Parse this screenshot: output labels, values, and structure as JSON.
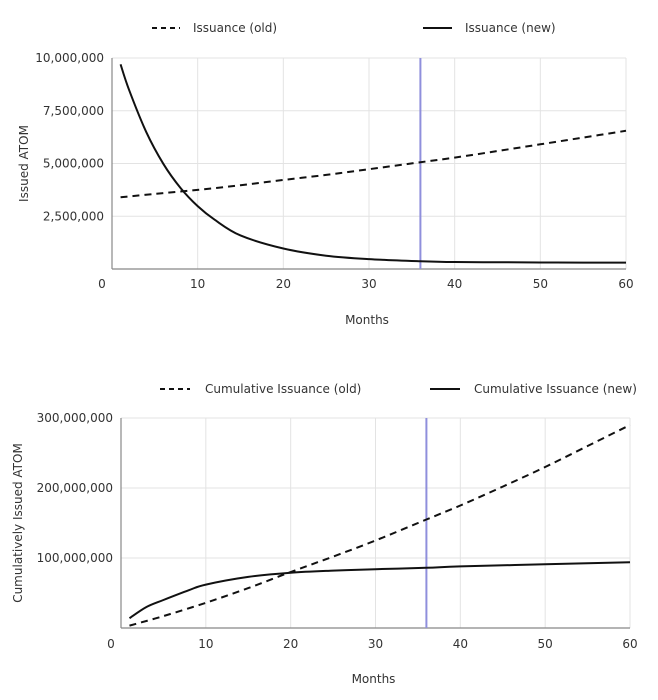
{
  "chart_data": [
    {
      "type": "line",
      "title": "",
      "xlabel": "Months",
      "ylabel": "Issued ATOM",
      "xlim": [
        0,
        60
      ],
      "ylim": [
        0,
        10000000
      ],
      "x_ticks": [
        0,
        10,
        20,
        30,
        40,
        50,
        60
      ],
      "x_tick_labels": [
        "0",
        "10",
        "20",
        "30",
        "40",
        "50",
        "60"
      ],
      "y_ticks": [
        2500000,
        5000000,
        7500000,
        10000000
      ],
      "y_tick_labels": [
        "2,500,000",
        "5,000,000",
        "7,500,000",
        "10,000,000"
      ],
      "grid": true,
      "legend_position": "top",
      "marker_line": {
        "x": 36,
        "color": "#8f8fdc"
      },
      "series": [
        {
          "name": "Issuance (old)",
          "style": "dashed",
          "color": "#111111",
          "x": [
            1,
            5,
            10,
            15,
            20,
            25,
            30,
            36,
            40,
            45,
            50,
            55,
            60
          ],
          "y": [
            3400000,
            3560000,
            3750000,
            3970000,
            4220000,
            4460000,
            4730000,
            5060000,
            5280000,
            5590000,
            5910000,
            6230000,
            6550000
          ]
        },
        {
          "name": "Issuance (new)",
          "style": "solid",
          "color": "#111111",
          "x": [
            1,
            2,
            4,
            6,
            8,
            10,
            12,
            15,
            20,
            25,
            30,
            36,
            40,
            45,
            50,
            55,
            60
          ],
          "y": [
            9700000,
            8480000,
            6490000,
            4980000,
            3840000,
            2980000,
            2330000,
            1590000,
            970000,
            630000,
            470000,
            370000,
            330000,
            320000,
            310000,
            300000,
            300000
          ]
        }
      ]
    },
    {
      "type": "line",
      "title": "",
      "xlabel": "Months",
      "ylabel": "Cumulatively Issued ATOM",
      "xlim": [
        0,
        60
      ],
      "ylim": [
        0,
        300000000
      ],
      "x_ticks": [
        0,
        10,
        20,
        30,
        40,
        50,
        60
      ],
      "x_tick_labels": [
        "0",
        "10",
        "20",
        "30",
        "40",
        "50",
        "60"
      ],
      "y_ticks": [
        100000000,
        200000000,
        300000000
      ],
      "y_tick_labels": [
        "100,000,000",
        "200,000,000",
        "300,000,000"
      ],
      "grid": true,
      "legend_position": "top",
      "marker_line": {
        "x": 36,
        "color": "#8f8fdc"
      },
      "series": [
        {
          "name": "Cumulative Issuance (old)",
          "style": "dashed",
          "color": "#111111",
          "x": [
            1,
            5,
            10,
            15,
            20,
            25,
            30,
            36,
            40,
            45,
            50,
            55,
            60
          ],
          "y": [
            3400000,
            17000000,
            36000000,
            57000000,
            80000000,
            102000000,
            125000000,
            155000000,
            175000000,
            202000000,
            230000000,
            260000000,
            290000000
          ]
        },
        {
          "name": "Cumulative Issuance (new)",
          "style": "solid",
          "color": "#111111",
          "x": [
            1,
            3,
            5,
            8,
            10,
            15,
            20,
            25,
            30,
            36,
            40,
            50,
            60
          ],
          "y": [
            14000000,
            30000000,
            40000000,
            54000000,
            62000000,
            73000000,
            79000000,
            82000000,
            84000000,
            86000000,
            88000000,
            91000000,
            94000000
          ]
        }
      ]
    }
  ]
}
